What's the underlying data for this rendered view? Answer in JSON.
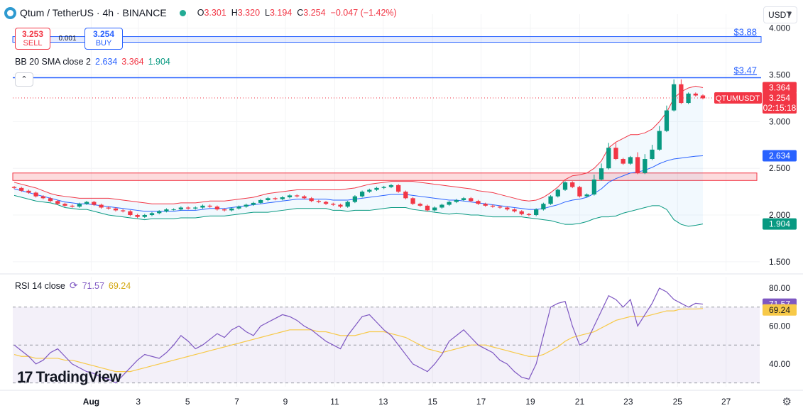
{
  "header": {
    "title": "Qtum / TetherUS · 4h · BINANCE",
    "ohlc": [
      {
        "k": "O",
        "v": "3.301"
      },
      {
        "k": "H",
        "v": "3.320"
      },
      {
        "k": "L",
        "v": "3.194"
      },
      {
        "k": "C",
        "v": "3.254"
      },
      {
        "k": "",
        "v": "−0.047 (−1.42%)"
      }
    ]
  },
  "trade": {
    "sell_price": "3.253",
    "sell_label": "SELL",
    "spread": "0.001",
    "buy_price": "3.254",
    "buy_label": "BUY"
  },
  "currency": "USDT",
  "indicators": {
    "bb_label": "BB 20 SMA close 2",
    "bb_basis": "2.634",
    "bb_upper": "3.364",
    "bb_lower": "1.904",
    "rsi_label": "RSI 14 close",
    "rsi_value": "71.57",
    "rsi_ma": "69.24"
  },
  "watermark": "TradingView",
  "chart_data": [
    {
      "type": "candlestick",
      "symbol": "QTUMUSDT",
      "ylim": [
        1.4,
        4.15
      ],
      "y_ticks": [
        1.5,
        2.0,
        2.5,
        3.0,
        3.5,
        4.0
      ],
      "y_tick_labels": [
        "1.500",
        "2.000",
        "2.500",
        "3.000",
        "3.500",
        "4.000"
      ],
      "x_ticks": [
        {
          "t": 0.105,
          "label": "Aug"
        },
        {
          "t": 0.168,
          "label": "3"
        },
        {
          "t": 0.234,
          "label": "5"
        },
        {
          "t": 0.3,
          "label": "7"
        },
        {
          "t": 0.365,
          "label": "9"
        },
        {
          "t": 0.431,
          "label": "11"
        },
        {
          "t": 0.496,
          "label": "13"
        },
        {
          "t": 0.562,
          "label": "15"
        },
        {
          "t": 0.627,
          "label": "17"
        },
        {
          "t": 0.693,
          "label": "19"
        },
        {
          "t": 0.759,
          "label": "21"
        },
        {
          "t": 0.824,
          "label": "23"
        },
        {
          "t": 0.89,
          "label": "25"
        },
        {
          "t": 0.955,
          "label": "27"
        }
      ],
      "close_series": [
        2.29,
        2.26,
        2.24,
        2.2,
        2.18,
        2.15,
        2.12,
        2.1,
        2.09,
        2.12,
        2.14,
        2.11,
        2.08,
        2.07,
        2.05,
        2.04,
        2.0,
        1.98,
        2.0,
        2.02,
        2.04,
        2.06,
        2.06,
        2.08,
        2.07,
        2.08,
        2.1,
        2.09,
        2.06,
        2.05,
        2.07,
        2.09,
        2.11,
        2.13,
        2.16,
        2.18,
        2.17,
        2.19,
        2.21,
        2.2,
        2.18,
        2.15,
        2.14,
        2.12,
        2.11,
        2.09,
        2.14,
        2.2,
        2.25,
        2.27,
        2.29,
        2.3,
        2.32,
        2.25,
        2.18,
        2.12,
        2.1,
        2.05,
        2.08,
        2.11,
        2.14,
        2.16,
        2.18,
        2.15,
        2.12,
        2.1,
        2.09,
        2.08,
        2.06,
        2.04,
        2.01,
        2.0,
        2.06,
        2.12,
        2.2,
        2.27,
        2.35,
        2.3,
        2.2,
        2.22,
        2.38,
        2.5,
        2.72,
        2.6,
        2.55,
        2.62,
        2.45,
        2.6,
        2.7,
        2.9,
        3.12,
        3.4,
        3.2,
        3.3,
        3.28,
        3.25
      ],
      "bb_upper": [
        2.35,
        2.33,
        2.31,
        2.29,
        2.26,
        2.23,
        2.21,
        2.2,
        2.19,
        2.18,
        2.18,
        2.18,
        2.18,
        2.18,
        2.17,
        2.16,
        2.15,
        2.14,
        2.13,
        2.12,
        2.12,
        2.12,
        2.12,
        2.13,
        2.13,
        2.13,
        2.14,
        2.15,
        2.15,
        2.15,
        2.16,
        2.17,
        2.18,
        2.19,
        2.21,
        2.23,
        2.24,
        2.25,
        2.26,
        2.27,
        2.27,
        2.27,
        2.27,
        2.27,
        2.27,
        2.27,
        2.28,
        2.29,
        2.31,
        2.33,
        2.34,
        2.35,
        2.36,
        2.36,
        2.36,
        2.36,
        2.35,
        2.34,
        2.33,
        2.32,
        2.31,
        2.3,
        2.29,
        2.28,
        2.26,
        2.25,
        2.24,
        2.22,
        2.2,
        2.18,
        2.16,
        2.15,
        2.16,
        2.19,
        2.24,
        2.3,
        2.38,
        2.42,
        2.43,
        2.45,
        2.5,
        2.58,
        2.72,
        2.78,
        2.82,
        2.86,
        2.86,
        2.88,
        2.92,
        3.0,
        3.1,
        3.25,
        3.32,
        3.36,
        3.38,
        3.364
      ],
      "bb_basis": [
        2.28,
        2.26,
        2.24,
        2.22,
        2.2,
        2.18,
        2.16,
        2.14,
        2.13,
        2.12,
        2.12,
        2.11,
        2.1,
        2.09,
        2.08,
        2.07,
        2.06,
        2.05,
        2.04,
        2.04,
        2.04,
        2.04,
        2.04,
        2.05,
        2.05,
        2.05,
        2.06,
        2.07,
        2.07,
        2.07,
        2.08,
        2.09,
        2.1,
        2.11,
        2.12,
        2.13,
        2.14,
        2.15,
        2.16,
        2.17,
        2.17,
        2.17,
        2.17,
        2.17,
        2.16,
        2.16,
        2.16,
        2.17,
        2.18,
        2.19,
        2.2,
        2.21,
        2.22,
        2.22,
        2.22,
        2.21,
        2.2,
        2.19,
        2.18,
        2.17,
        2.16,
        2.16,
        2.15,
        2.14,
        2.13,
        2.12,
        2.11,
        2.1,
        2.09,
        2.08,
        2.07,
        2.06,
        2.06,
        2.07,
        2.09,
        2.11,
        2.14,
        2.16,
        2.17,
        2.19,
        2.23,
        2.28,
        2.35,
        2.39,
        2.42,
        2.45,
        2.46,
        2.48,
        2.51,
        2.55,
        2.58,
        2.6,
        2.61,
        2.62,
        2.63,
        2.634
      ],
      "bb_lower": [
        2.21,
        2.19,
        2.17,
        2.15,
        2.14,
        2.13,
        2.11,
        2.08,
        2.07,
        2.06,
        2.06,
        2.04,
        2.02,
        2.0,
        1.99,
        1.98,
        1.97,
        1.96,
        1.95,
        1.96,
        1.96,
        1.96,
        1.96,
        1.97,
        1.97,
        1.97,
        1.98,
        1.99,
        1.99,
        1.99,
        2.0,
        2.01,
        2.02,
        2.03,
        2.03,
        2.03,
        2.04,
        2.05,
        2.06,
        2.07,
        2.07,
        2.07,
        2.07,
        2.07,
        2.05,
        2.05,
        2.04,
        2.05,
        2.05,
        2.05,
        2.06,
        2.07,
        2.08,
        2.08,
        2.08,
        2.06,
        2.05,
        2.04,
        2.03,
        2.02,
        2.01,
        2.02,
        2.01,
        2.0,
        2.0,
        1.99,
        1.98,
        1.98,
        1.98,
        1.98,
        1.98,
        1.97,
        1.96,
        1.95,
        1.94,
        1.92,
        1.9,
        1.9,
        1.91,
        1.93,
        1.96,
        1.98,
        1.98,
        1.99,
        2.02,
        2.04,
        2.06,
        2.08,
        2.1,
        2.1,
        2.06,
        1.95,
        1.9,
        1.88,
        1.89,
        1.904
      ],
      "horizontal_lines": [
        {
          "value": 3.88,
          "label": "$3.88"
        },
        {
          "value": 3.47,
          "label": "$3.47"
        }
      ],
      "zone": {
        "from": 2.37,
        "to": 2.45
      },
      "current_price": {
        "value": 3.254,
        "label": "QTUMUSDT",
        "price_label": "3.254",
        "countdown": "02:15:18"
      },
      "axis_labels": [
        {
          "value": 3.364,
          "text": "3.364",
          "color": "#f23645"
        },
        {
          "value": 2.634,
          "text": "2.634",
          "color": "#2962ff"
        },
        {
          "value": 1.904,
          "text": "1.904",
          "color": "#089981"
        }
      ]
    },
    {
      "type": "line",
      "name": "RSI 14 close",
      "ylim": [
        28,
        86
      ],
      "y_ticks": [
        40,
        60,
        80
      ],
      "y_tick_labels": [
        "40.00",
        "60.00",
        "80.00"
      ],
      "bands": [
        70,
        50,
        30
      ],
      "rsi": [
        50,
        47,
        44,
        40,
        42,
        46,
        48,
        44,
        40,
        38,
        36,
        35,
        33,
        32,
        30,
        34,
        38,
        42,
        45,
        44,
        43,
        46,
        50,
        55,
        52,
        48,
        50,
        53,
        56,
        54,
        58,
        60,
        57,
        55,
        60,
        62,
        64,
        66,
        65,
        63,
        60,
        58,
        55,
        52,
        50,
        48,
        55,
        60,
        65,
        66,
        62,
        58,
        55,
        50,
        45,
        40,
        38,
        36,
        40,
        45,
        52,
        55,
        58,
        54,
        50,
        48,
        46,
        42,
        40,
        36,
        33,
        32,
        40,
        55,
        70,
        72,
        73,
        60,
        50,
        52,
        60,
        68,
        76,
        74,
        70,
        74,
        60,
        66,
        72,
        80,
        78,
        74,
        72,
        70,
        72,
        71.57
      ],
      "rsi_ma": [
        45,
        44,
        44,
        43,
        43,
        43,
        43,
        42,
        42,
        41,
        40,
        39,
        38,
        37,
        36,
        36,
        36,
        37,
        38,
        39,
        40,
        41,
        42,
        43,
        44,
        45,
        46,
        47,
        48,
        49,
        50,
        51,
        52,
        53,
        54,
        55,
        56,
        57,
        58,
        58,
        58,
        58,
        57,
        57,
        56,
        55,
        55,
        55,
        56,
        57,
        57,
        57,
        56,
        55,
        54,
        52,
        50,
        48,
        47,
        46,
        47,
        48,
        49,
        50,
        50,
        50,
        49,
        48,
        47,
        46,
        45,
        44,
        44,
        45,
        47,
        49,
        52,
        54,
        55,
        56,
        57,
        59,
        61,
        63,
        64,
        65,
        65,
        65,
        66,
        67,
        68,
        68,
        69,
        69,
        69,
        69.24
      ],
      "axis_labels": [
        {
          "value": 71.57,
          "text": "71.57",
          "color": "#7e57c2"
        },
        {
          "value": 69.24,
          "text": "69.24",
          "color": "#f7c948"
        }
      ]
    }
  ]
}
